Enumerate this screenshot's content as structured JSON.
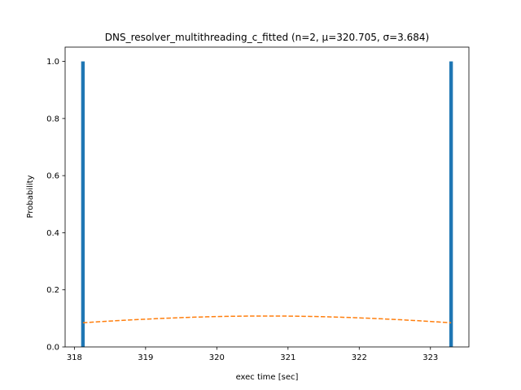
{
  "chart_data": {
    "type": "bar",
    "title": "DNS_resolver_multithreading_c_fitted (n=2, μ=320.705, σ=3.684)",
    "xlabel": "exec time [sec]",
    "ylabel": "Probability",
    "xlim": [
      317.87,
      323.54
    ],
    "ylim": [
      0.0,
      1.05
    ],
    "xticks": [
      318,
      319,
      320,
      321,
      322,
      323
    ],
    "yticks": [
      0.0,
      0.2,
      0.4,
      0.6,
      0.8,
      1.0
    ],
    "xtick_labels": [
      "318",
      "319",
      "320",
      "321",
      "322",
      "323"
    ],
    "ytick_labels": [
      "0.0",
      "0.2",
      "0.4",
      "0.6",
      "0.8",
      "1.0"
    ],
    "bars": [
      {
        "x": 318.12,
        "width": 0.05,
        "value": 1.0
      },
      {
        "x": 323.29,
        "width": 0.05,
        "value": 1.0
      }
    ],
    "fit": {
      "mu": 320.705,
      "sigma": 3.684,
      "x_range": [
        318.12,
        323.29
      ],
      "style": "dashed"
    },
    "colors": {
      "bars": "#1f77b4",
      "fit": "#ff7f0e"
    },
    "grid": false,
    "legend": "none"
  }
}
